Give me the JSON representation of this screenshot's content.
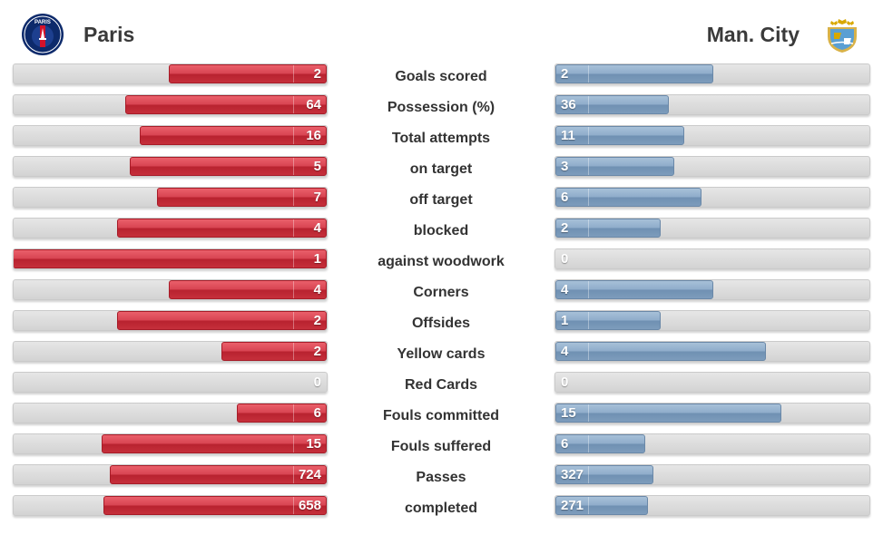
{
  "header": {
    "home": {
      "name": "Paris",
      "badge_text": "PARIS",
      "logo_icon": "psg-crest-icon",
      "color": "#d84452"
    },
    "away": {
      "name": "Man. City",
      "logo_icon": "man-city-crest-icon",
      "color": "#8fadcb"
    }
  },
  "chart_data": {
    "type": "bar",
    "orientation": "horizontal-diverging",
    "categories": [
      "Goals scored",
      "Possession (%)",
      "Total attempts",
      "on target",
      "off target",
      "blocked",
      "against woodwork",
      "Corners",
      "Offsides",
      "Yellow cards",
      "Red Cards",
      "Fouls committed",
      "Fouls suffered",
      "Passes",
      "completed"
    ],
    "series": [
      {
        "name": "Paris",
        "values": [
          2,
          64,
          16,
          5,
          7,
          4,
          1,
          4,
          2,
          2,
          0,
          6,
          15,
          724,
          658
        ],
        "color": "#d84452"
      },
      {
        "name": "Man. City",
        "values": [
          2,
          36,
          11,
          3,
          6,
          2,
          0,
          4,
          1,
          4,
          0,
          15,
          6,
          327,
          271
        ],
        "color": "#8fadcb"
      }
    ]
  }
}
